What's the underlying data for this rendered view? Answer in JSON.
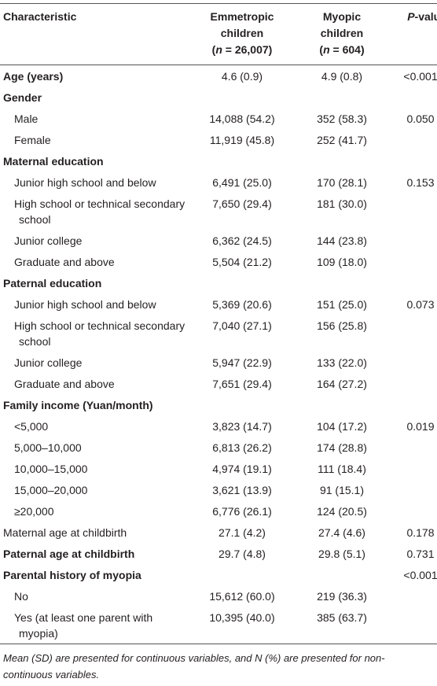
{
  "header": {
    "characteristic": "Characteristic",
    "emmetropic": {
      "line1": "Emmetropic",
      "line2": "children",
      "line3": [
        "(",
        "n",
        " = 26,007)"
      ]
    },
    "myopic": {
      "line1": "Myopic",
      "line2": "children",
      "line3": [
        "(",
        "n",
        " = 604)"
      ]
    },
    "p_value": [
      "P",
      "-value"
    ]
  },
  "rows": [
    {
      "label": "Age (years)",
      "bold": true,
      "level": 0,
      "emmetropic": "4.6 (0.9)",
      "myopic": "4.9 (0.8)",
      "p": "<0.001"
    },
    {
      "label": "Gender",
      "bold": true,
      "level": 0,
      "emmetropic": null,
      "myopic": null,
      "p": null
    },
    {
      "label": "Male",
      "bold": false,
      "level": 1,
      "emmetropic": "14,088 (54.2)",
      "myopic": "352 (58.3)",
      "p": "0.050"
    },
    {
      "label": "Female",
      "bold": false,
      "level": 1,
      "emmetropic": "11,919 (45.8)",
      "myopic": "252 (41.7)",
      "p": null
    },
    {
      "label": "Maternal education",
      "bold": true,
      "level": 0,
      "emmetropic": null,
      "myopic": null,
      "p": null
    },
    {
      "label": "Junior high school and below",
      "bold": false,
      "level": 1,
      "emmetropic": "6,491 (25.0)",
      "myopic": "170 (28.1)",
      "p": "0.153"
    },
    {
      "label": "High school or technical secondary school",
      "bold": false,
      "level": 1,
      "emmetropic": "7,650 (29.4)",
      "myopic": "181 (30.0)",
      "p": null
    },
    {
      "label": "Junior college",
      "bold": false,
      "level": 1,
      "emmetropic": "6,362 (24.5)",
      "myopic": "144 (23.8)",
      "p": null
    },
    {
      "label": "Graduate and above",
      "bold": false,
      "level": 1,
      "emmetropic": "5,504 (21.2)",
      "myopic": "109 (18.0)",
      "p": null
    },
    {
      "label": "Paternal education",
      "bold": true,
      "level": 0,
      "emmetropic": null,
      "myopic": null,
      "p": null
    },
    {
      "label": "Junior high school and below",
      "bold": false,
      "level": 1,
      "emmetropic": "5,369 (20.6)",
      "myopic": "151 (25.0)",
      "p": "0.073"
    },
    {
      "label": "High school or technical secondary school",
      "bold": false,
      "level": 1,
      "emmetropic": "7,040 (27.1)",
      "myopic": "156 (25.8)",
      "p": null
    },
    {
      "label": "Junior college",
      "bold": false,
      "level": 1,
      "emmetropic": "5,947 (22.9)",
      "myopic": "133 (22.0)",
      "p": null
    },
    {
      "label": "Graduate and above",
      "bold": false,
      "level": 1,
      "emmetropic": "7,651 (29.4)",
      "myopic": "164 (27.2)",
      "p": null
    },
    {
      "label": "Family income (Yuan/month)",
      "bold": true,
      "level": 0,
      "emmetropic": null,
      "myopic": null,
      "p": null
    },
    {
      "label": "<5,000",
      "bold": false,
      "level": 1,
      "emmetropic": "3,823 (14.7)",
      "myopic": "104 (17.2)",
      "p": "0.019"
    },
    {
      "label": "5,000–10,000",
      "bold": false,
      "level": 1,
      "emmetropic": "6,813 (26.2)",
      "myopic": "174 (28.8)",
      "p": null
    },
    {
      "label": "10,000–15,000",
      "bold": false,
      "level": 1,
      "emmetropic": "4,974 (19.1)",
      "myopic": "111 (18.4)",
      "p": null
    },
    {
      "label": "15,000–20,000",
      "bold": false,
      "level": 1,
      "emmetropic": "3,621 (13.9)",
      "myopic": "91 (15.1)",
      "p": null
    },
    {
      "label": "≥20,000",
      "bold": false,
      "level": 1,
      "emmetropic": "6,776 (26.1)",
      "myopic": "124 (20.5)",
      "p": null
    },
    {
      "label": "Maternal age at childbirth",
      "bold": false,
      "level": 0,
      "emmetropic": "27.1 (4.2)",
      "myopic": "27.4 (4.6)",
      "p": "0.178"
    },
    {
      "label": "Paternal age at childbirth",
      "bold": true,
      "level": 0,
      "emmetropic": "29.7 (4.8)",
      "myopic": "29.8 (5.1)",
      "p": "0.731"
    },
    {
      "label": "Parental history of myopia",
      "bold": true,
      "level": 0,
      "emmetropic": null,
      "myopic": null,
      "p": "<0.001"
    },
    {
      "label": "No",
      "bold": false,
      "level": 1,
      "emmetropic": "15,612 (60.0)",
      "myopic": "219 (36.3)",
      "p": null
    },
    {
      "label": "Yes (at least one parent with myopia)",
      "bold": false,
      "level": 1,
      "emmetropic": "10,395 (40.0)",
      "myopic": "385 (63.7)",
      "p": null
    }
  ],
  "footnote": "Mean (SD) are presented for continuous variables, and N (%) are presented for non-continuous variables."
}
